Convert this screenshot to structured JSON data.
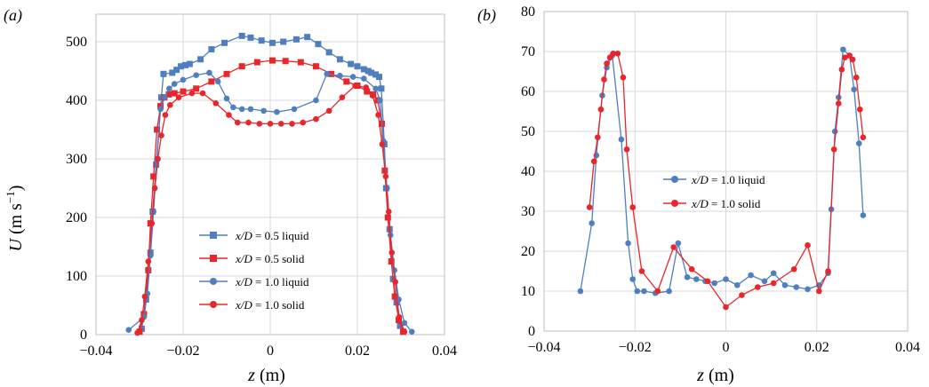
{
  "chart_data": [
    {
      "type": "line",
      "panel_label": "(a)",
      "xlabel_var": "z",
      "xlabel_unit": " (m)",
      "ylabel_var": "U",
      "ylabel_unit": " (m s",
      "ylabel_exp": "−1",
      "ylabel_close": ")",
      "xlim": [
        -0.04,
        0.04
      ],
      "ylim": [
        0,
        500
      ],
      "xticks": [
        "−0.04",
        "−0.02",
        "0",
        "0.02",
        "0.04"
      ],
      "yticks": [
        "0",
        "100",
        "200",
        "300",
        "400",
        "500"
      ],
      "grid": true,
      "legend_position": "bottom-center",
      "series": [
        {
          "name": "x/D = 0.5 liquid",
          "legend_var": "x/D",
          "legend_rest": " = 0.5 liquid",
          "color": "#4f7fc0",
          "marker": "square",
          "x": [
            -0.0295,
            -0.0285,
            -0.0275,
            -0.027,
            -0.0262,
            -0.025,
            -0.0245,
            -0.0225,
            -0.0215,
            -0.0205,
            -0.0195,
            -0.0185,
            -0.016,
            -0.0135,
            -0.0105,
            -0.0065,
            -0.0045,
            -0.002,
            0.0005,
            0.003,
            0.006,
            0.0085,
            0.011,
            0.0135,
            0.016,
            0.0185,
            0.02,
            0.0215,
            0.0225,
            0.0232,
            0.0242,
            0.025,
            0.0255,
            0.0262,
            0.0266,
            0.0274,
            0.0282,
            0.029,
            0.0298,
            0.0305
          ],
          "y": [
            10,
            60,
            140,
            210,
            290,
            405,
            445,
            447,
            452,
            458,
            460,
            462,
            470,
            487,
            498,
            510,
            507,
            502,
            498,
            500,
            504,
            508,
            496,
            482,
            470,
            462,
            458,
            453,
            450,
            447,
            444,
            440,
            420,
            325,
            250,
            180,
            95,
            55,
            15,
            5
          ]
        },
        {
          "name": "x/D = 0.5 solid",
          "legend_var": "x/D",
          "legend_rest": " = 0.5 solid",
          "color": "#e8262b",
          "marker": "square",
          "x": [
            -0.03,
            -0.029,
            -0.028,
            -0.0275,
            -0.0268,
            -0.026,
            -0.0252,
            -0.0243,
            -0.0233,
            -0.022,
            -0.02,
            -0.017,
            -0.0135,
            -0.01,
            -0.0065,
            -0.003,
            0.0005,
            0.0035,
            0.007,
            0.0105,
            0.014,
            0.0175,
            0.02,
            0.0222,
            0.0236,
            0.0247,
            0.0256,
            0.0263,
            0.027,
            0.0278,
            0.0286,
            0.0295,
            0.0305
          ],
          "y": [
            5,
            35,
            110,
            190,
            270,
            350,
            390,
            405,
            410,
            412,
            415,
            420,
            432,
            445,
            458,
            465,
            468,
            467,
            465,
            458,
            445,
            432,
            425,
            415,
            410,
            400,
            360,
            280,
            200,
            125,
            65,
            25,
            5
          ]
        },
        {
          "name": "x/D = 1.0 liquid",
          "legend_var": "x/D",
          "legend_rest": " = 1.0 liquid",
          "color": "#4f7fc0",
          "marker": "circle",
          "x": [
            -0.0325,
            -0.029,
            -0.0282,
            -0.0275,
            -0.0268,
            -0.026,
            -0.0252,
            -0.0242,
            -0.0232,
            -0.022,
            -0.02,
            -0.017,
            -0.014,
            -0.012,
            -0.01,
            -0.0085,
            -0.0065,
            -0.0045,
            -0.0015,
            0.0015,
            0.0055,
            0.0105,
            0.013,
            0.016,
            0.019,
            0.0215,
            0.0242,
            0.0252,
            0.026,
            0.0268,
            0.0276,
            0.0285,
            0.0295,
            0.0308,
            0.0325
          ],
          "y": [
            8,
            30,
            70,
            135,
            210,
            300,
            385,
            405,
            420,
            428,
            435,
            443,
            447,
            432,
            403,
            388,
            385,
            385,
            382,
            380,
            385,
            400,
            445,
            442,
            440,
            437,
            420,
            400,
            330,
            250,
            170,
            110,
            60,
            20,
            5
          ]
        },
        {
          "name": "x/D = 1.0 solid",
          "legend_var": "x/D",
          "legend_rest": " = 1.0 solid",
          "color": "#e8262b",
          "marker": "circle",
          "x": [
            -0.0305,
            -0.0295,
            -0.0288,
            -0.028,
            -0.0272,
            -0.0265,
            -0.0258,
            -0.025,
            -0.0241,
            -0.023,
            -0.021,
            -0.018,
            -0.0155,
            -0.0125,
            -0.0095,
            -0.0075,
            -0.005,
            -0.0025,
            0,
            0.0025,
            0.005,
            0.0075,
            0.0105,
            0.0135,
            0.0165,
            0.0195,
            0.022,
            0.0235,
            0.0248,
            0.0257,
            0.0265,
            0.0272,
            0.0279,
            0.0287,
            0.0296,
            0.0308
          ],
          "y": [
            3,
            25,
            65,
            125,
            190,
            250,
            300,
            340,
            375,
            392,
            405,
            412,
            412,
            395,
            375,
            362,
            362,
            360,
            360,
            360,
            360,
            362,
            368,
            382,
            405,
            425,
            422,
            408,
            375,
            325,
            270,
            210,
            140,
            90,
            30,
            5
          ]
        }
      ]
    },
    {
      "type": "line",
      "panel_label": "(b)",
      "xlabel_var": "z",
      "xlabel_unit": " (m)",
      "xlim": [
        -0.04,
        0.04
      ],
      "ylim": [
        0,
        80
      ],
      "xticks": [
        "−0.04",
        "−0.02",
        "0",
        "0.02",
        "0.04"
      ],
      "yticks": [
        "0",
        "10",
        "20",
        "30",
        "40",
        "50",
        "60",
        "70",
        "80"
      ],
      "grid": true,
      "legend_position": "center-left",
      "series": [
        {
          "name": "x/D = 1.0 liquid",
          "legend_var": "x/D",
          "legend_rest": " = 1.0 liquid",
          "color": "#4f7fc0",
          "marker": "circle",
          "x": [
            -0.032,
            -0.0295,
            -0.0285,
            -0.0272,
            -0.0262,
            -0.025,
            -0.023,
            -0.0215,
            -0.0205,
            -0.0195,
            -0.018,
            -0.0155,
            -0.0125,
            -0.0105,
            -0.0085,
            -0.0065,
            -0.0045,
            -0.0025,
            0,
            0.0025,
            0.0055,
            0.0085,
            0.0105,
            0.013,
            0.0155,
            0.018,
            0.0205,
            0.0225,
            0.0232,
            0.024,
            0.0248,
            0.0258,
            0.0272,
            0.0282,
            0.0293,
            0.0302
          ],
          "y": [
            10,
            27,
            44,
            59,
            66,
            69,
            48,
            22,
            13,
            10,
            10,
            9.5,
            10,
            22,
            13.5,
            13,
            12.5,
            12,
            13,
            11.5,
            14,
            12.5,
            14.5,
            11.5,
            11,
            10.5,
            11.5,
            14.5,
            30.5,
            50,
            58.5,
            70.5,
            69,
            60.5,
            47,
            29
          ]
        },
        {
          "name": "x/D = 1.0 solid",
          "legend_var": "x/D",
          "legend_rest": " = 1.0 solid",
          "color": "#e8262b",
          "marker": "circle",
          "x": [
            -0.03,
            -0.029,
            -0.0282,
            -0.0275,
            -0.0268,
            -0.0262,
            -0.0255,
            -0.0248,
            -0.0238,
            -0.0226,
            -0.0218,
            -0.0205,
            -0.0185,
            -0.015,
            -0.0115,
            -0.0075,
            -0.004,
            0,
            0.0035,
            0.007,
            0.0105,
            0.015,
            0.018,
            0.0205,
            0.0225,
            0.0238,
            0.0248,
            0.0255,
            0.0262,
            0.0272,
            0.0279,
            0.0287,
            0.0295,
            0.0302
          ],
          "y": [
            31,
            42.5,
            48.5,
            55.5,
            63,
            67,
            68.5,
            69.5,
            69.5,
            63.5,
            45.5,
            31,
            15,
            10,
            21,
            15.5,
            12.5,
            6,
            9,
            11,
            12,
            15.5,
            21.5,
            10,
            15,
            45.5,
            57,
            65.5,
            68.5,
            69,
            68,
            63.5,
            55.5,
            48.5
          ]
        }
      ]
    }
  ]
}
